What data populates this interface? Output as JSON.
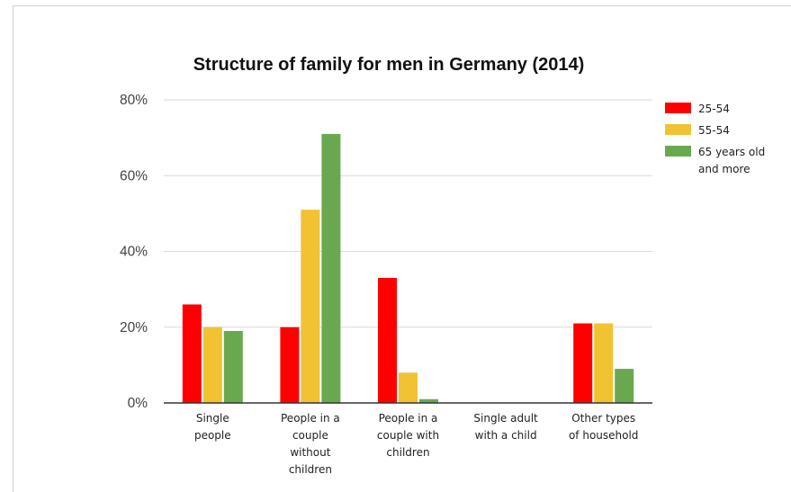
{
  "chart_data": {
    "type": "bar",
    "title": "Structure of family for men in Germany (2014)",
    "xlabel": "",
    "ylabel": "",
    "ylim": [
      0,
      80
    ],
    "yticks": [
      "0%",
      "20%",
      "40%",
      "60%",
      "80%"
    ],
    "grid": true,
    "legend_position": "right",
    "categories": [
      [
        "Single",
        "people"
      ],
      [
        "People in a",
        "couple",
        "without",
        "children"
      ],
      [
        "People in a",
        "couple with",
        "children"
      ],
      [
        "Single adult",
        "with a child"
      ],
      [
        "Other types",
        "of household"
      ]
    ],
    "series": [
      {
        "name": "25-54",
        "color": "#ff0000",
        "values": [
          26,
          20,
          33,
          0,
          21
        ]
      },
      {
        "name": "55-54",
        "color": "#f1c232",
        "values": [
          20,
          51,
          8,
          0,
          21
        ]
      },
      {
        "name": "65 years old and more",
        "legend_lines": [
          "65 years old",
          "and more"
        ],
        "color": "#6aa84f",
        "values": [
          19,
          71,
          1,
          0,
          9
        ]
      }
    ]
  }
}
